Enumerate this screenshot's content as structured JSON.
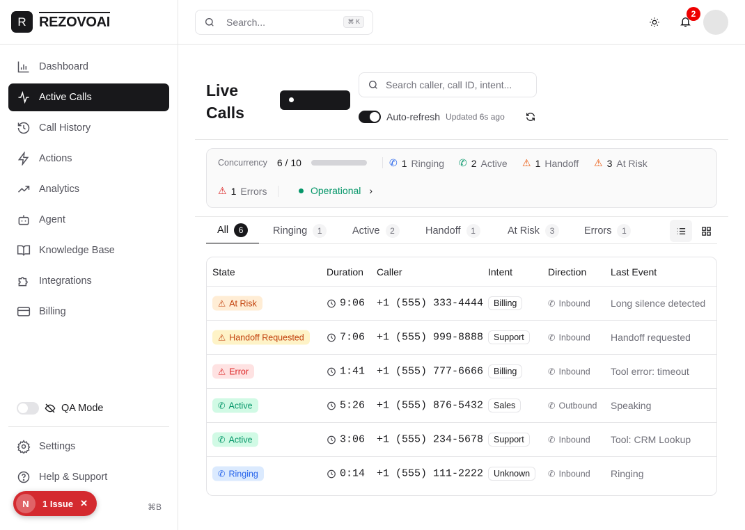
{
  "brand": {
    "logo_letter": "R",
    "name": "REZOVOAI"
  },
  "sidebar": {
    "items": [
      {
        "label": "Dashboard",
        "icon": "bar-chart-icon"
      },
      {
        "label": "Active Calls",
        "icon": "activity-icon",
        "active": true
      },
      {
        "label": "Call History",
        "icon": "history-icon"
      },
      {
        "label": "Actions",
        "icon": "zap-icon"
      },
      {
        "label": "Analytics",
        "icon": "trending-up-icon"
      },
      {
        "label": "Agent",
        "icon": "bot-icon"
      },
      {
        "label": "Knowledge Base",
        "icon": "book-icon"
      },
      {
        "label": "Integrations",
        "icon": "puzzle-icon"
      },
      {
        "label": "Billing",
        "icon": "credit-card-icon"
      }
    ],
    "qa_mode": "QA Mode",
    "qa_enabled": false,
    "settings": "Settings",
    "help": "Help & Support",
    "shortcut": "⌘B",
    "issue_letter": "N",
    "issue_label": "1 Issue"
  },
  "header": {
    "search_placeholder": "Search...",
    "search_kbd": "⌘ K",
    "notifications": "2"
  },
  "page": {
    "title_line1": "Live",
    "title_line2": "Calls",
    "search_placeholder": "Search caller, call ID, intent...",
    "auto_refresh": "Auto-refresh",
    "auto_refresh_on": true,
    "updated": "Updated 6s ago"
  },
  "stats": {
    "concurrency_label": "Concurrency",
    "concurrency": "6 / 10",
    "concurrency_fraction": 0.6,
    "ringing_n": "1",
    "ringing": "Ringing",
    "active_n": "2",
    "active": "Active",
    "handoff_n": "1",
    "handoff": "Handoff",
    "atrisk_n": "3",
    "atrisk": "At Risk",
    "errors_n": "1",
    "errors": "Errors",
    "status": "Operational"
  },
  "tabs": [
    {
      "label": "All",
      "count": "6"
    },
    {
      "label": "Ringing",
      "count": "1"
    },
    {
      "label": "Active",
      "count": "2"
    },
    {
      "label": "Handoff",
      "count": "1"
    },
    {
      "label": "At Risk",
      "count": "3"
    },
    {
      "label": "Errors",
      "count": "1"
    }
  ],
  "table": {
    "headers": [
      "State",
      "Duration",
      "Caller",
      "Intent",
      "Direction",
      "Last Event"
    ],
    "rows": [
      {
        "state": "At Risk",
        "kind": "warn",
        "duration": "9:06",
        "caller": "+1 (555) 333-4444",
        "intent": "Billing",
        "direction": "Inbound",
        "event": "Long silence detected"
      },
      {
        "state": "Handoff Requested",
        "kind": "handoff",
        "duration": "7:06",
        "caller": "+1 (555) 999-8888",
        "intent": "Support",
        "direction": "Inbound",
        "event": "Handoff requested"
      },
      {
        "state": "Error",
        "kind": "error",
        "duration": "1:41",
        "caller": "+1 (555) 777-6666",
        "intent": "Billing",
        "direction": "Inbound",
        "event": "Tool error: timeout"
      },
      {
        "state": "Active",
        "kind": "active",
        "duration": "5:26",
        "caller": "+1 (555) 876-5432",
        "intent": "Sales",
        "direction": "Outbound",
        "event": "Speaking"
      },
      {
        "state": "Active",
        "kind": "active",
        "duration": "3:06",
        "caller": "+1 (555) 234-5678",
        "intent": "Support",
        "direction": "Inbound",
        "event": "Tool: CRM Lookup"
      },
      {
        "state": "Ringing",
        "kind": "ringing",
        "duration": "0:14",
        "caller": "+1 (555) 111-2222",
        "intent": "Unknown",
        "direction": "Inbound",
        "event": "Ringing"
      }
    ]
  },
  "colors": {
    "warn_bg": "#ffedd5",
    "warn_fg": "#c2410c",
    "handoff_bg": "#fef3c7",
    "handoff_fg": "#c2410c",
    "error_bg": "#fee2e2",
    "error_fg": "#dc2626",
    "active_bg": "#d1fae5",
    "active_fg": "#059669",
    "ringing_bg": "#dbeafe",
    "ringing_fg": "#2563eb"
  }
}
